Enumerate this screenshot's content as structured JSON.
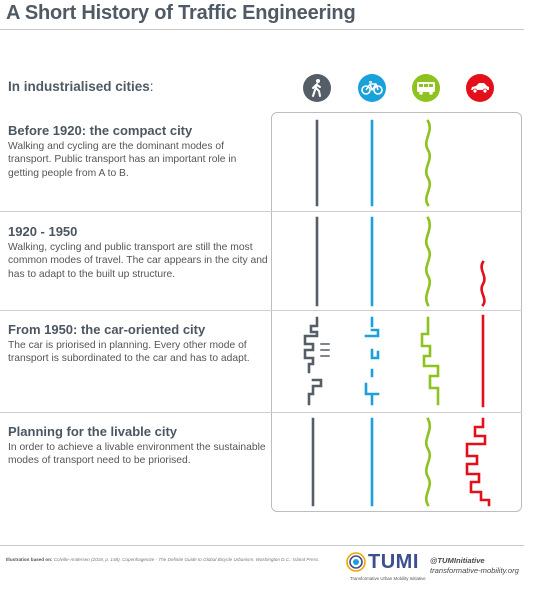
{
  "title": "A Short History of Traffic Engineering",
  "subtitle": "In industrialised cities",
  "subtitle_colon": ":",
  "modes": [
    {
      "name": "walking-icon",
      "color": "#555d66"
    },
    {
      "name": "bicycle-icon",
      "color": "#1aa0db"
    },
    {
      "name": "bus-icon",
      "color": "#8dc21f"
    },
    {
      "name": "car-icon",
      "color": "#e3101b"
    }
  ],
  "rows": [
    {
      "title": "Before 1920: the compact city",
      "desc": "Walking and cycling are the dominant modes of transport. Public transport has an important role in getting people from A to B."
    },
    {
      "title": "1920 - 1950",
      "desc": "Walking, cycling and public transport are still the most common modes of travel. The car appears in the city and has to adapt to the built up structure."
    },
    {
      "title": "From 1950: the car-oriented city",
      "desc": "The car is priorised in planning. Every other mode of transport is subordinated to the car and has to adapt."
    },
    {
      "title": "Planning for the livable city",
      "desc": "In order to achieve a livable environment the sustainable modes of transport need to be priorised."
    }
  ],
  "footer": {
    "credit_label": "Illustration based on:",
    "credit_text": "Colville-Andersen (2018, p. 148). Copenhagenize - The Definite Guide to Global Bicycle Urbanism. Washington D.C.: Island Press.",
    "logo_text": "TUMI",
    "logo_sub": "Transformative Urban Mobility Initiative",
    "handle": "@TUMInitiative",
    "website": "transformative-mobility.org"
  }
}
